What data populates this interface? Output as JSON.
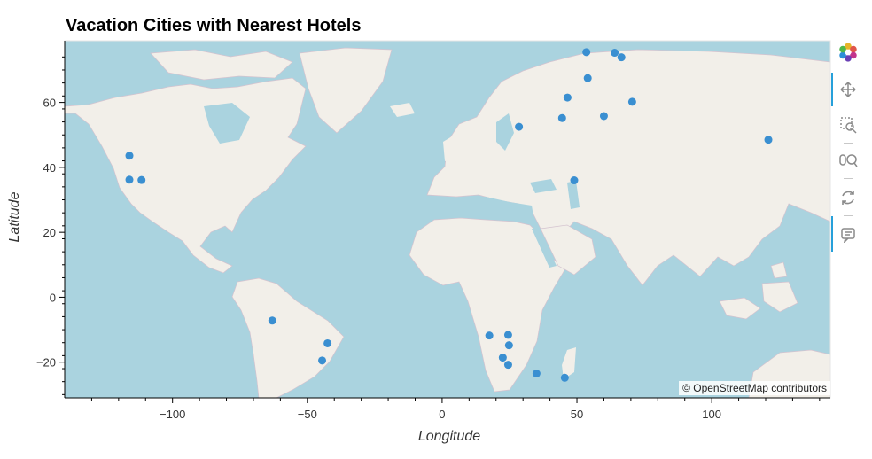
{
  "title": "Vacation Cities with Nearest Hotels",
  "xlabel": "Longitude",
  "ylabel": "Latitude",
  "attribution": {
    "prefix": "© ",
    "link": "OpenStreetMap",
    "suffix": " contributors"
  },
  "toolbar": [
    "bokeh-logo-icon",
    "pan-icon",
    "box-zoom-icon",
    "wheel-zoom-icon",
    "reset-icon",
    "hover-icon"
  ],
  "colors": {
    "marker": "#3a8fd1",
    "water": "#aad3df",
    "land": "#f2efe9",
    "active": "#26a0da"
  },
  "chart_data": {
    "type": "scatter",
    "xlim": [
      -140,
      144
    ],
    "ylim": [
      -31,
      79
    ],
    "x_ticks": [
      -100,
      -50,
      0,
      50,
      100
    ],
    "x_tick_labels": [
      "−100",
      "−50",
      "0",
      "50",
      "100"
    ],
    "y_ticks": [
      -20,
      0,
      20,
      40,
      60
    ],
    "y_tick_labels": [
      "−20",
      "0",
      "20",
      "40",
      "60"
    ],
    "points": [
      {
        "x": -116,
        "y": 43.6
      },
      {
        "x": -116,
        "y": 36.2
      },
      {
        "x": -111.5,
        "y": 36.1
      },
      {
        "x": -63,
        "y": -7.2
      },
      {
        "x": -42.5,
        "y": -14.2
      },
      {
        "x": -44.5,
        "y": -19.5
      },
      {
        "x": 17.5,
        "y": -11.8
      },
      {
        "x": 22.5,
        "y": -18.6
      },
      {
        "x": 24.5,
        "y": -11.6
      },
      {
        "x": 24.8,
        "y": -14.8
      },
      {
        "x": 24.5,
        "y": -20.8
      },
      {
        "x": 35,
        "y": -23.5
      },
      {
        "x": 45.5,
        "y": -24.8
      },
      {
        "x": 28.5,
        "y": 52.5
      },
      {
        "x": 44.5,
        "y": 55.2
      },
      {
        "x": 46.5,
        "y": 61.5
      },
      {
        "x": 53.5,
        "y": 75.5
      },
      {
        "x": 54,
        "y": 67.5
      },
      {
        "x": 60,
        "y": 55.8
      },
      {
        "x": 64,
        "y": 75.3
      },
      {
        "x": 66.5,
        "y": 73.9
      },
      {
        "x": 70.5,
        "y": 60.2
      },
      {
        "x": 49,
        "y": 36
      },
      {
        "x": 121,
        "y": 48.5
      }
    ]
  }
}
